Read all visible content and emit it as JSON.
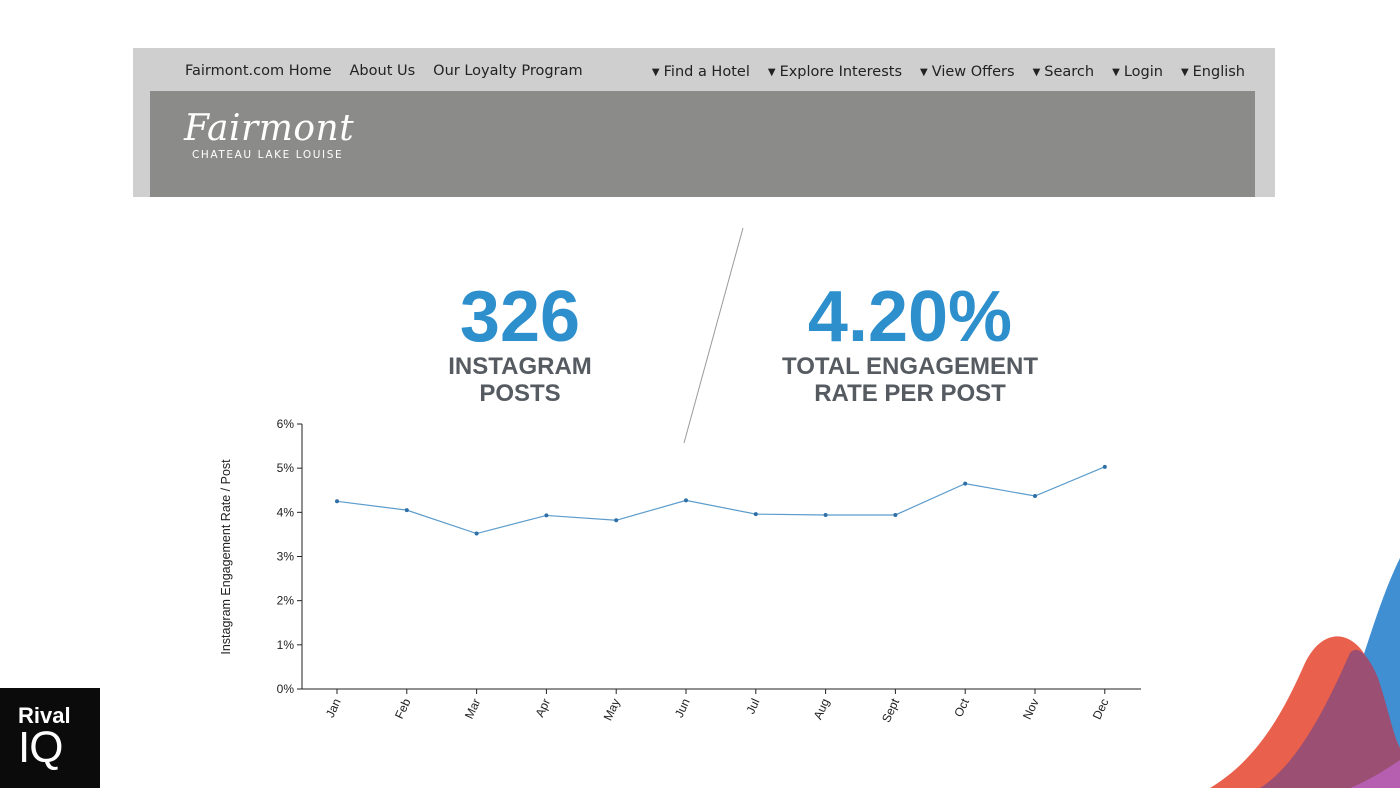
{
  "header": {
    "nav_left": [
      "Fairmont.com Home",
      "About Us",
      "Our Loyalty Program"
    ],
    "nav_right": [
      "Find a Hotel",
      "Explore Interests",
      "View Offers",
      "Search",
      "Login",
      "English"
    ],
    "logo_script": "Fairmont",
    "logo_sub": "CHATEAU LAKE LOUISE"
  },
  "stats": {
    "posts_value": "326",
    "posts_label_1": "INSTAGRAM",
    "posts_label_2": "POSTS",
    "rate_value": "4.20%",
    "rate_label_1": "TOTAL ENGAGEMENT",
    "rate_label_2": "RATE PER POST"
  },
  "colors": {
    "accent": "#2e8fcd",
    "line": "#5b9ccc",
    "label_gray": "#555b61"
  },
  "brand": {
    "word": "Rival",
    "iq": "IQ"
  },
  "chart_data": {
    "type": "line",
    "categories": [
      "Jan",
      "Feb",
      "Mar",
      "Apr",
      "May",
      "Jun",
      "Jul",
      "Aug",
      "Sept",
      "Oct",
      "Nov",
      "Dec"
    ],
    "values": [
      4.25,
      4.05,
      3.52,
      3.93,
      3.82,
      4.27,
      3.96,
      3.94,
      3.94,
      4.65,
      4.37,
      5.03
    ],
    "ylabel": "Instagram Engagement Rate / Post",
    "ylim": [
      0,
      6
    ],
    "yticks": [
      "0%",
      "1%",
      "2%",
      "3%",
      "4%",
      "5%",
      "6%"
    ],
    "grid": false
  }
}
